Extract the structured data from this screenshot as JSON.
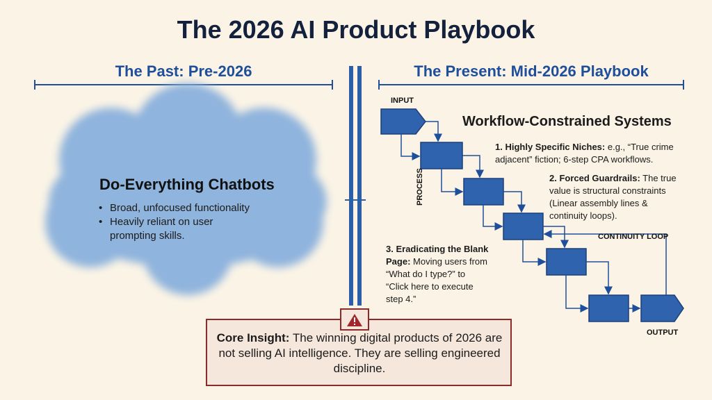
{
  "header": {
    "title": "The 2026 AI Product Playbook"
  },
  "past": {
    "heading": "The Past: Pre-2026",
    "card": {
      "title": "Do-Everything Chatbots",
      "bullets": [
        "Broad, unfocused functionality",
        "Heavily reliant on user prompting skills."
      ]
    }
  },
  "present": {
    "heading": "The Present: Mid-2026 Playbook",
    "subtitle": "Workflow-Constrained Systems",
    "flow": {
      "input": "INPUT",
      "process": "PROCESS",
      "loop": "CONTINUITY LOOP",
      "output": "OUTPUT"
    },
    "points": [
      {
        "number": "1.",
        "title": "Highly Specific Niches:",
        "text": "e.g., “True crime adjacent” fiction; 6-step CPA workflows."
      },
      {
        "number": "2.",
        "title": "Forced Guardrails:",
        "text": "The true value is structural constraints (Linear assembly lines & continuity loops)."
      },
      {
        "number": "3.",
        "title": "Eradicating the Blank Page:",
        "text": "Moving users from “What do I type?” to “Click here to execute step 4.”"
      }
    ]
  },
  "insight": {
    "label": "Core Insight:",
    "text": "The winning digital products of 2026 are not selling AI intelligence. They are selling engineered discipline."
  }
}
